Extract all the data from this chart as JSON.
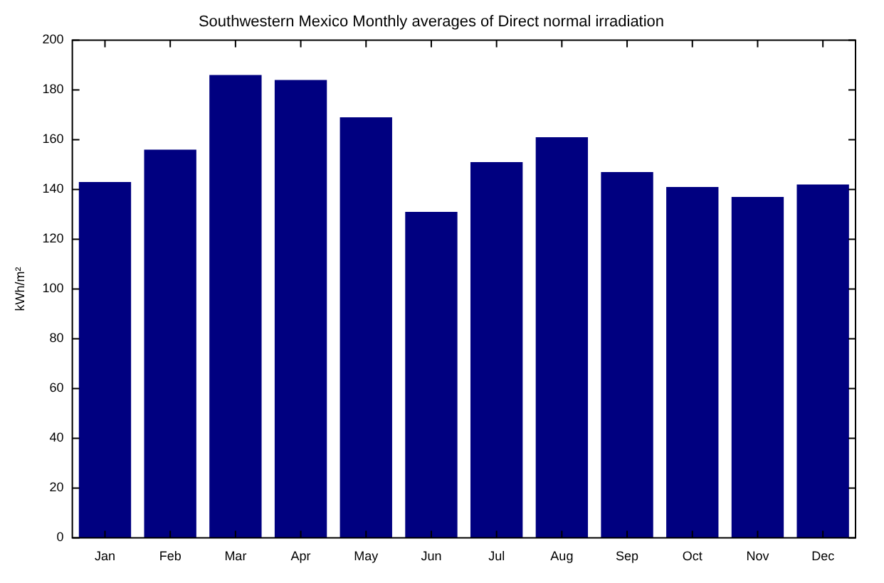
{
  "chart_data": {
    "type": "bar",
    "title": "Southwestern Mexico Monthly averages of Direct normal irradiation",
    "ylabel": "kWh/m²",
    "categories": [
      "Jan",
      "Feb",
      "Mar",
      "Apr",
      "May",
      "Jun",
      "Jul",
      "Aug",
      "Sep",
      "Oct",
      "Nov",
      "Dec"
    ],
    "values": [
      143,
      156,
      186,
      184,
      169,
      131,
      151,
      161,
      147,
      141,
      137,
      142
    ],
    "color": "#000080",
    "ylim": [
      0,
      200
    ],
    "yticks": [
      0,
      20,
      40,
      60,
      80,
      100,
      120,
      140,
      160,
      180,
      200
    ],
    "grid": false,
    "legend": false
  }
}
